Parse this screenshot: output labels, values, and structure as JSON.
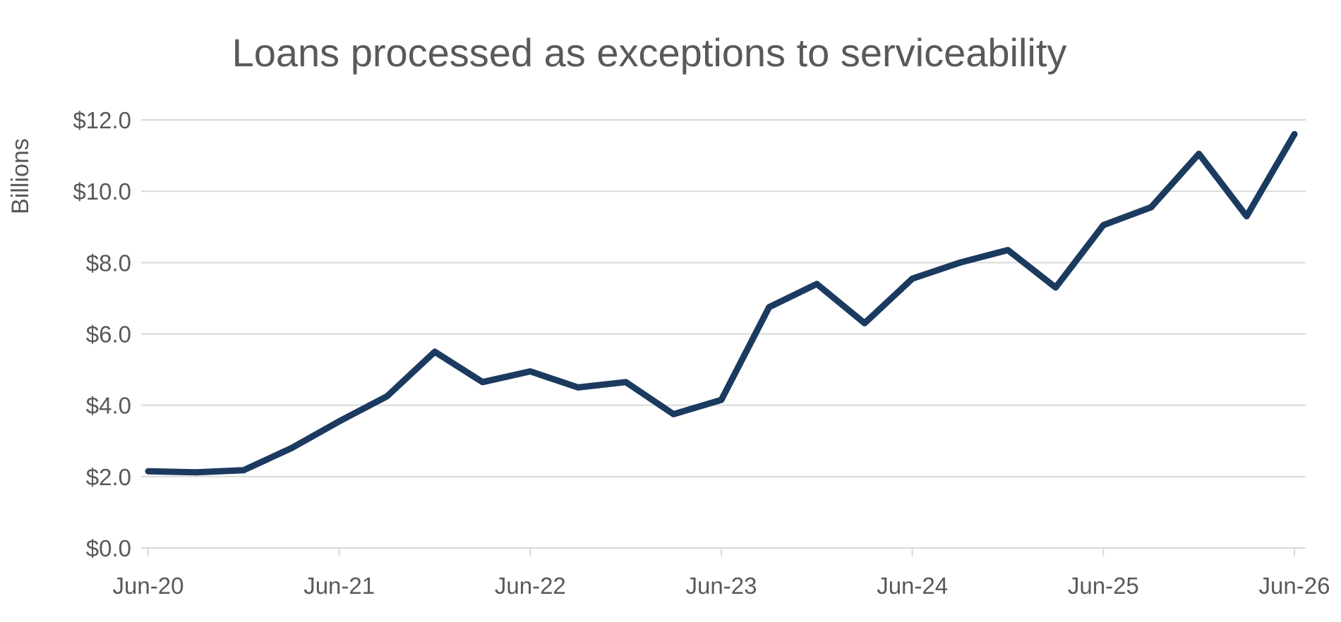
{
  "chart_data": {
    "type": "line",
    "title": "Loans processed as exceptions to serviceability",
    "xlabel": "",
    "ylabel": "Billions",
    "ylim": [
      0,
      12
    ],
    "yticks": [
      "$0.0",
      "$2.0",
      "$4.0",
      "$6.0",
      "$8.0",
      "$10.0",
      "$12.0"
    ],
    "ytick_values": [
      0,
      2,
      4,
      6,
      8,
      10,
      12
    ],
    "xtick_labels": [
      "Jun-20",
      "Jun-21",
      "Jun-22",
      "Jun-23",
      "Jun-24",
      "Jun-25",
      "Jun-26"
    ],
    "grid": true,
    "series_color": "#1b3a5f",
    "series": [
      {
        "values": [
          2.15,
          2.12,
          2.18,
          2.8,
          3.55,
          4.25,
          5.5,
          4.65,
          4.95,
          4.5,
          4.65,
          3.75,
          4.15,
          6.75,
          7.4,
          6.3,
          7.55,
          8.0,
          8.35,
          7.3,
          9.05,
          9.55,
          11.05,
          9.3,
          11.6
        ]
      }
    ],
    "x": [
      "Jun-20",
      "Sep-20",
      "Dec-20",
      "Mar-21",
      "Jun-21",
      "Sep-21",
      "Dec-21",
      "Mar-22",
      "Jun-22",
      "Sep-22",
      "Dec-22",
      "Mar-23",
      "Jun-23",
      "Sep-23",
      "Dec-23",
      "Mar-24",
      "Jun-24",
      "Sep-24",
      "Dec-24",
      "Mar-25",
      "Jun-25",
      "Sep-25",
      "Dec-25",
      "Mar-26",
      "Jun-26"
    ]
  }
}
